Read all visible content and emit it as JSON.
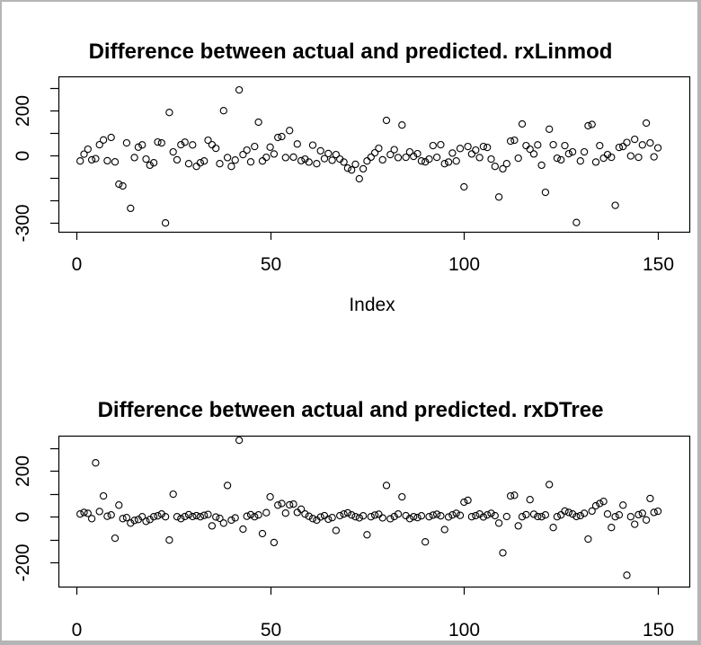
{
  "window": {
    "background": "#ffffff",
    "border_color": "#b5b5b5",
    "foreground": "#000000"
  },
  "chart_data": [
    {
      "type": "scatter",
      "title": "Difference between actual and predicted. rxLinmod",
      "xlabel": "Index",
      "ylabel": "",
      "marker": "open-circle",
      "grid": false,
      "x_ticks": [
        0,
        50,
        100,
        150
      ],
      "y_ticks": [
        300,
        200,
        100,
        0,
        -100,
        -200,
        -300
      ],
      "y_tick_labels": [
        "",
        "200",
        "",
        "0",
        "",
        "",
        "-300"
      ],
      "xlim": [
        -4.6,
        158.1
      ],
      "ylim": [
        -339,
        350
      ],
      "x_description": "observation index 1..150",
      "values": [
        -25,
        5,
        27,
        -20,
        -15,
        47,
        68,
        -24,
        79,
        -29,
        -128,
        -136,
        55,
        -235,
        -10,
        36,
        46,
        -17,
        -44,
        -33,
        59,
        55,
        -300,
        190,
        15,
        -20,
        47,
        58,
        -37,
        46,
        -49,
        -33,
        -25,
        67,
        47,
        31,
        -37,
        198,
        -10,
        -49,
        -21,
        290,
        3,
        23,
        -29,
        39,
        147,
        -25,
        -9,
        36,
        6,
        79,
        83,
        -10,
        110,
        -8,
        50,
        -24,
        -17,
        -30,
        45,
        -37,
        20,
        -15,
        8,
        -22,
        3,
        -17,
        -30,
        -57,
        -65,
        -40,
        -104,
        -60,
        -25,
        -8,
        11,
        31,
        -20,
        155,
        3,
        25,
        -10,
        134,
        -9,
        15,
        -5,
        7,
        -25,
        -29,
        -17,
        43,
        -9,
        47,
        -37,
        -30,
        10,
        -25,
        30,
        -140,
        39,
        6,
        23,
        -10,
        39,
        35,
        -17,
        -49,
        -185,
        -60,
        -37,
        63,
        67,
        -13,
        139,
        43,
        27,
        6,
        46,
        -44,
        -164,
        116,
        47,
        -13,
        -20,
        43,
        7,
        15,
        -298,
        -25,
        15,
        131,
        137,
        -30,
        43,
        -13,
        3,
        -9,
        -222,
        35,
        39,
        57,
        -3,
        71,
        -9,
        46,
        143,
        55,
        -7,
        33
      ]
    },
    {
      "type": "scatter",
      "title": "Difference between actual and predicted. rxDTree",
      "xlabel": "",
      "ylabel": "",
      "marker": "open-circle",
      "grid": false,
      "x_ticks": [
        0,
        50,
        100,
        150
      ],
      "y_ticks": [
        300,
        200,
        100,
        0,
        -100,
        -200
      ],
      "y_tick_labels": [
        "",
        "200",
        "",
        "0",
        "",
        "-200"
      ],
      "xlim": [
        -4.6,
        158.1
      ],
      "ylim": [
        -306,
        355
      ],
      "x_description": "observation index 1..150",
      "values": [
        12,
        19,
        15,
        -8,
        236,
        23,
        91,
        2,
        8,
        -94,
        51,
        -8,
        -4,
        -28,
        -16,
        -12,
        0,
        -20,
        -12,
        0,
        4,
        12,
        0,
        -102,
        99,
        0,
        -8,
        1,
        9,
        1,
        5,
        0,
        6,
        10,
        -40,
        -1,
        -7,
        -28,
        137,
        -15,
        -5,
        335,
        -54,
        2,
        9,
        0,
        8,
        -74,
        18,
        87,
        -113,
        51,
        58,
        16,
        52,
        55,
        19,
        33,
        12,
        2,
        -8,
        -15,
        -1,
        5,
        -11,
        -4,
        -60,
        5,
        12,
        17,
        8,
        0,
        -5,
        4,
        -79,
        0,
        7,
        11,
        -5,
        137,
        -9,
        1,
        12,
        87,
        5,
        -8,
        0,
        -4,
        4,
        -110,
        0,
        7,
        11,
        4,
        -56,
        -1,
        8,
        15,
        6,
        64,
        72,
        0,
        5,
        12,
        -1,
        8,
        15,
        5,
        -28,
        -158,
        1,
        91,
        94,
        -40,
        0,
        9,
        75,
        11,
        1,
        0,
        8,
        141,
        -47,
        0,
        8,
        25,
        19,
        12,
        1,
        5,
        15,
        -98,
        25,
        48,
        58,
        67,
        12,
        -47,
        0,
        8,
        51,
        -256,
        0,
        -33,
        9,
        15,
        -14,
        80,
        19,
        24
      ]
    }
  ]
}
